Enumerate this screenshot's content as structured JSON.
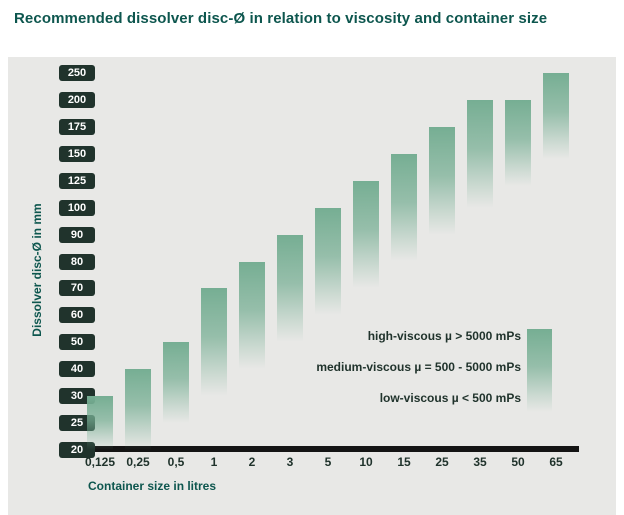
{
  "title": "Recommended dissolver disc-Ø in relation to viscosity and container size",
  "chart_data": {
    "type": "bar",
    "title": "Recommended dissolver disc-Ø in relation to viscosity and container size",
    "xlabel": "Container size in litres",
    "ylabel": "Dissolver disc-Ø in mm",
    "y_ticks": [
      250,
      200,
      175,
      150,
      125,
      100,
      90,
      80,
      70,
      60,
      50,
      40,
      30,
      25,
      20
    ],
    "y_scale": "ordinal-ticks",
    "categories": [
      "0,125",
      "0,25",
      "0,5",
      "1",
      "2",
      "3",
      "5",
      "10",
      "15",
      "25",
      "35",
      "50",
      "65"
    ],
    "bars": [
      {
        "category": "0,125",
        "low": 20,
        "high": 30
      },
      {
        "category": "0,25",
        "low": 20,
        "high": 40
      },
      {
        "category": "0,5",
        "low": 25,
        "high": 50
      },
      {
        "category": "1",
        "low": 30,
        "high": 70
      },
      {
        "category": "2",
        "low": 40,
        "high": 80
      },
      {
        "category": "3",
        "low": 50,
        "high": 90
      },
      {
        "category": "5",
        "low": 60,
        "high": 100
      },
      {
        "category": "10",
        "low": 70,
        "high": 125
      },
      {
        "category": "15",
        "low": 80,
        "high": 150
      },
      {
        "category": "25",
        "low": 90,
        "high": 175
      },
      {
        "category": "35",
        "low": 100,
        "high": 200
      },
      {
        "category": "50",
        "low": 120,
        "high": 200
      },
      {
        "category": "65",
        "low": 145,
        "high": 250
      }
    ],
    "legend": [
      {
        "label": "high-viscous µ > 5000 mPs"
      },
      {
        "label": "medium-viscous µ = 500 - 5000 mPs"
      },
      {
        "label": "low-viscous µ < 500 mPs"
      }
    ],
    "layout": {
      "grid": false,
      "legend_position": "inside-right"
    },
    "colors": {
      "title": "#0d564e",
      "panel_bg": "#e8e8e6",
      "bar_green": "#76ae93",
      "badge_bg": "#20332c",
      "badge_text": "#ffffff",
      "axis_line": "#141414",
      "label_dark": "#20332c"
    }
  }
}
